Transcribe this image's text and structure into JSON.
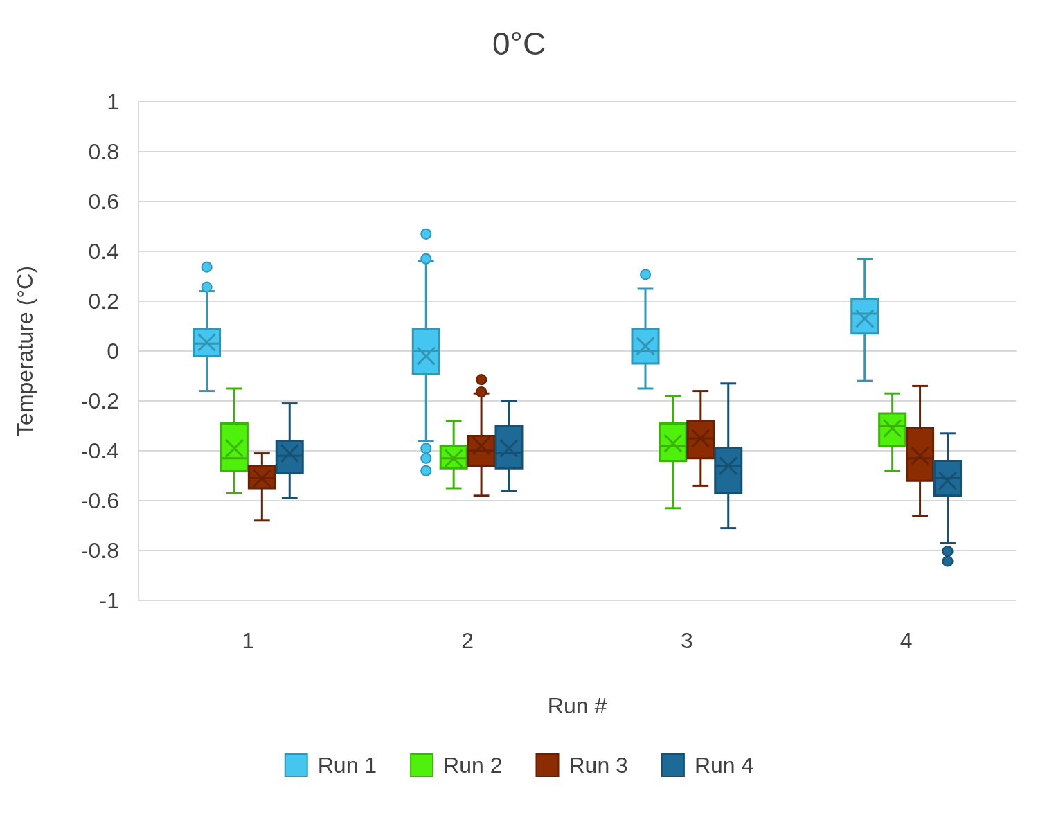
{
  "chart_data": {
    "type": "box",
    "title": "0°C",
    "xlabel": "Run #",
    "ylabel": "Temperature (°C)",
    "categories": [
      "1",
      "2",
      "3",
      "4"
    ],
    "ylim": [
      -1,
      1
    ],
    "yticks": [
      -1,
      -0.8,
      -0.6,
      -0.4,
      -0.2,
      0,
      0.2,
      0.4,
      0.6,
      0.8,
      1
    ],
    "grid": "y",
    "legend": "bottom",
    "series": [
      {
        "name": "Run 1",
        "color": "#45c6f0",
        "boxes": [
          {
            "low": -0.16,
            "q1": -0.02,
            "median": 0.03,
            "q3": 0.09,
            "high": 0.24,
            "mean": 0.035,
            "outliers": [
              0.26,
              0.34
            ]
          },
          {
            "low": -0.36,
            "q1": -0.09,
            "median": 0,
            "q3": 0.09,
            "high": 0.36,
            "mean": -0.02,
            "outliers": [
              0.37,
              0.47,
              -0.39,
              -0.43,
              -0.48
            ]
          },
          {
            "low": -0.15,
            "q1": -0.05,
            "median": 0,
            "q3": 0.09,
            "high": 0.25,
            "mean": 0.02,
            "outliers": [
              0.31
            ]
          },
          {
            "low": -0.12,
            "q1": 0.07,
            "median": 0.15,
            "q3": 0.21,
            "high": 0.37,
            "mean": 0.13
          }
        ]
      },
      {
        "name": "Run 2",
        "color": "#4ef00c",
        "boxes": [
          {
            "low": -0.57,
            "q1": -0.48,
            "median": -0.43,
            "q3": -0.29,
            "high": -0.15,
            "mean": -0.39
          },
          {
            "low": -0.55,
            "q1": -0.47,
            "median": -0.43,
            "q3": -0.38,
            "high": -0.28,
            "mean": -0.43
          },
          {
            "low": -0.63,
            "q1": -0.44,
            "median": -0.38,
            "q3": -0.29,
            "high": -0.18,
            "mean": -0.37
          },
          {
            "low": -0.48,
            "q1": -0.38,
            "median": -0.3,
            "q3": -0.25,
            "high": -0.17,
            "mean": -0.31
          }
        ]
      },
      {
        "name": "Run 3",
        "color": "#8b2c03",
        "boxes": [
          {
            "low": -0.68,
            "q1": -0.55,
            "median": -0.51,
            "q3": -0.46,
            "high": -0.41,
            "mean": -0.51
          },
          {
            "low": -0.58,
            "q1": -0.46,
            "median": -0.4,
            "q3": -0.34,
            "high": -0.17,
            "mean": -0.38,
            "outliers": [
              -0.16,
              -0.11
            ]
          },
          {
            "low": -0.54,
            "q1": -0.43,
            "median": -0.35,
            "q3": -0.28,
            "high": -0.16,
            "mean": -0.35
          },
          {
            "low": -0.66,
            "q1": -0.52,
            "median": -0.43,
            "q3": -0.31,
            "high": -0.14,
            "mean": -0.42
          }
        ]
      },
      {
        "name": "Run 4",
        "color": "#1e6a96",
        "boxes": [
          {
            "low": -0.59,
            "q1": -0.49,
            "median": -0.42,
            "q3": -0.36,
            "high": -0.21,
            "mean": -0.41
          },
          {
            "low": -0.56,
            "q1": -0.47,
            "median": -0.41,
            "q3": -0.3,
            "high": -0.2,
            "mean": -0.39
          },
          {
            "low": -0.71,
            "q1": -0.57,
            "median": -0.46,
            "q3": -0.39,
            "high": -0.13,
            "mean": -0.46
          },
          {
            "low": -0.77,
            "q1": -0.58,
            "median": -0.51,
            "q3": -0.44,
            "high": -0.33,
            "mean": -0.52,
            "outliers": [
              -0.8,
              -0.84
            ]
          }
        ]
      }
    ]
  }
}
